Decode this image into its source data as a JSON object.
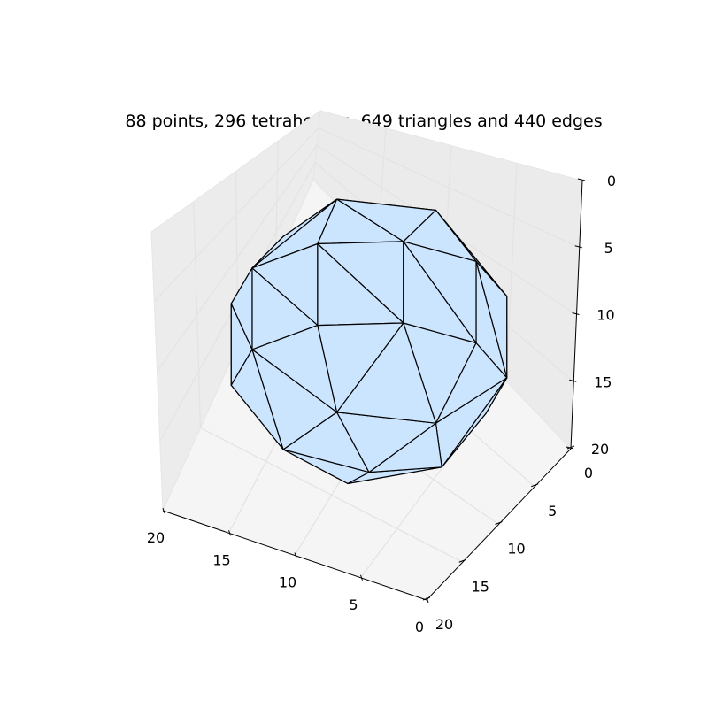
{
  "chart_data": {
    "type": "mesh3d",
    "title": "88 points, 296 tetrahedras, 649 triangles and 440 edges",
    "points": 88,
    "tetrahedra": 296,
    "triangles": 649,
    "edges": 440,
    "axes": {
      "x": {
        "ticks": [
          "20",
          "15",
          "10",
          "5",
          "0"
        ],
        "range": [
          20,
          0
        ]
      },
      "y": {
        "ticks": [
          "0",
          "5",
          "10",
          "15",
          "20"
        ],
        "range": [
          0,
          20
        ]
      },
      "z": {
        "ticks": [
          "0",
          "5",
          "10",
          "15",
          "20"
        ],
        "range": [
          0,
          20
        ]
      }
    },
    "grid": true,
    "face_color": "#cce5ff",
    "edge_color": "#000000",
    "pane_color": "#f2f2f2"
  }
}
